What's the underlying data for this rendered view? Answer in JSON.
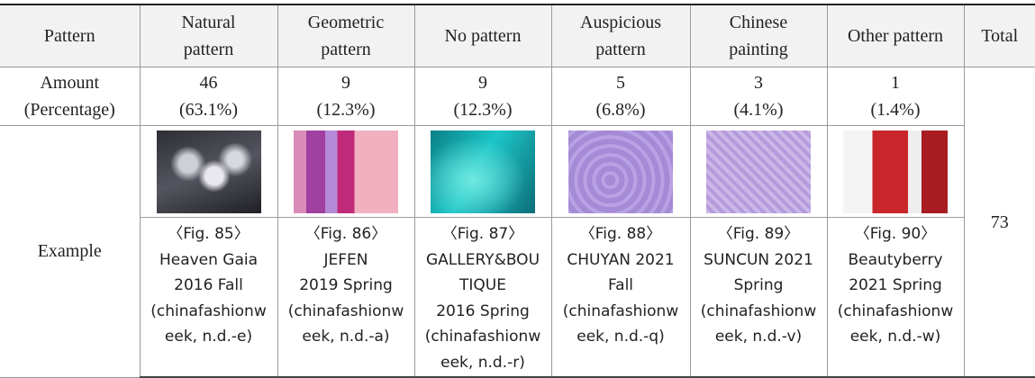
{
  "table": {
    "header": [
      [
        "Pattern"
      ],
      [
        "Natural",
        "pattern"
      ],
      [
        "Geometric",
        "pattern"
      ],
      [
        "No pattern"
      ],
      [
        "Auspicious",
        "pattern"
      ],
      [
        "Chinese",
        "painting"
      ],
      [
        "Other pattern"
      ],
      [
        "Total"
      ]
    ],
    "amount_label": [
      "Amount",
      "(Percentage)"
    ],
    "amounts": [
      [
        "46",
        "(63.1%)"
      ],
      [
        "9",
        "(12.3%)"
      ],
      [
        "9",
        "(12.3%)"
      ],
      [
        "5",
        "(6.8%)"
      ],
      [
        "3",
        "(4.1%)"
      ],
      [
        "1",
        "(1.4%)"
      ]
    ],
    "total": "73",
    "example_label": "Example",
    "captions": [
      [
        "〈Fig. 85〉",
        "Heaven Gaia",
        "2016 Fall",
        "(chinafashionw",
        "eek, n.d.-e)"
      ],
      [
        "〈Fig. 86〉",
        "JEFEN",
        "2019 Spring",
        "(chinafashionw",
        "eek, n.d.-a)"
      ],
      [
        "〈Fig. 87〉",
        "GALLERY&BOU",
        "TIQUE",
        "2016 Spring",
        "(chinafashionw",
        "eek, n.d.-r)"
      ],
      [
        "〈Fig. 88〉",
        "CHUYAN 2021",
        "Fall",
        "(chinafashionw",
        "eek, n.d.-q)"
      ],
      [
        "〈Fig. 89〉",
        "SUNCUN 2021",
        "Spring",
        "(chinafashionw",
        "eek, n.d.-v)"
      ],
      [
        "〈Fig. 90〉",
        "Beautyberry",
        "2021 Spring",
        "(chinafashionw",
        "eek, n.d.-w)"
      ]
    ]
  }
}
